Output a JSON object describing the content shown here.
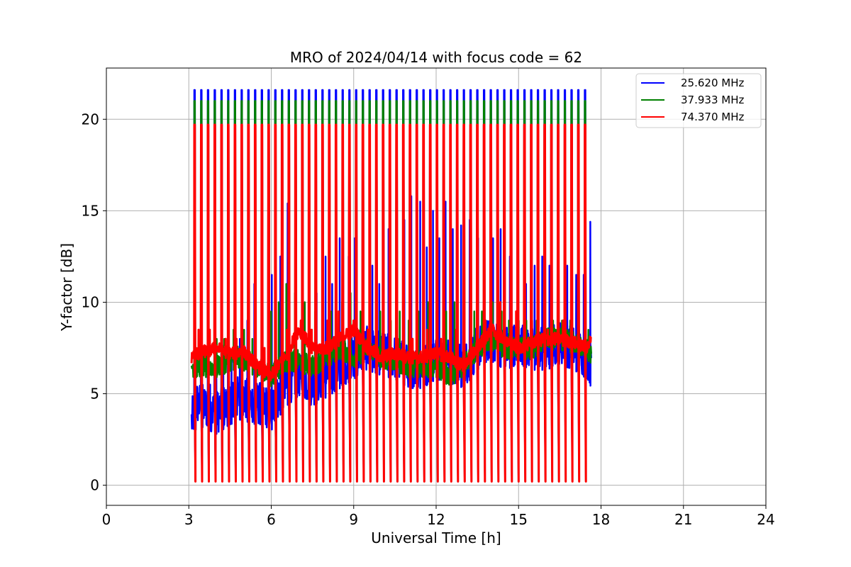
{
  "chart_data": {
    "type": "line",
    "title": "MRO of 2024/04/14 with focus code = 62",
    "xlabel": "Universal Time [h]",
    "ylabel": "Y-factor [dB]",
    "xlim": [
      0,
      24
    ],
    "ylim": [
      -1.1,
      22.8
    ],
    "xticks": [
      0,
      3,
      6,
      9,
      12,
      15,
      18,
      21,
      24
    ],
    "xtick_labels": [
      "0",
      "3",
      "6",
      "9",
      "12",
      "15",
      "18",
      "21",
      "24"
    ],
    "yticks": [
      0,
      5,
      10,
      15,
      20
    ],
    "ytick_labels": [
      "0",
      "5",
      "10",
      "15",
      "20"
    ],
    "grid": true,
    "legend_position": "top-right",
    "data_range_hours": [
      3.1,
      17.65
    ],
    "calibration": {
      "first_pulse_hour": 3.2,
      "pulse_interval_hours": 0.245,
      "pulse_count": 60,
      "pulse_peak_db": {
        "25.620 MHz": 21.6,
        "37.933 MHz": 21.0,
        "74.370 MHz": 19.7
      },
      "pulse_floor_db": 0.2
    },
    "series": [
      {
        "name": "25.620 MHz",
        "color": "#0000ff",
        "baseline_x": [
          3.1,
          3.3,
          4.0,
          4.8,
          5.5,
          6.0,
          6.5,
          7.0,
          7.5,
          8.0,
          8.5,
          9.0,
          9.5,
          10.0,
          10.5,
          11.0,
          11.5,
          12.0,
          12.5,
          13.0,
          13.5,
          14.0,
          14.5,
          15.0,
          15.5,
          16.0,
          16.5,
          17.0,
          17.5,
          17.65
        ],
        "baseline_y": [
          3.5,
          4.5,
          4.0,
          4.8,
          4.5,
          4.2,
          5.5,
          6.0,
          5.5,
          6.0,
          6.5,
          7.0,
          7.5,
          7.2,
          7.0,
          6.5,
          6.5,
          7.0,
          6.8,
          6.5,
          7.5,
          8.0,
          7.5,
          7.8,
          7.5,
          7.5,
          7.8,
          7.5,
          7.0,
          6.5
        ],
        "spike_peaks_db": [
          4.5,
          5.5,
          5.5,
          6.0,
          6.5,
          7.0,
          8.0,
          9.0,
          11.0,
          13.0,
          11.5,
          12.5,
          15.4,
          11.5,
          12.0,
          11.5,
          10.5,
          12.5,
          11.0,
          13.5,
          12.5,
          13.5,
          12.5,
          12.0,
          11.0,
          14.0,
          14.5,
          14.5,
          15.8,
          15.5,
          13.0,
          15.0,
          13.5,
          15.5,
          14.0,
          14.2,
          14.5,
          13.5,
          12.0,
          13.5,
          14.0,
          12.5,
          12.5,
          11.0,
          12.0,
          12.5,
          12.0,
          12.5,
          12.0,
          11.5,
          11.5,
          14.4
        ]
      },
      {
        "name": "37.933 MHz",
        "color": "#008000",
        "baseline_x": [
          3.1,
          3.3,
          4.0,
          4.8,
          5.5,
          6.0,
          6.5,
          7.0,
          7.5,
          8.0,
          8.5,
          9.0,
          9.5,
          10.0,
          10.5,
          11.0,
          11.5,
          12.0,
          12.5,
          13.0,
          13.5,
          14.0,
          14.5,
          15.0,
          15.5,
          16.0,
          16.5,
          17.0,
          17.5,
          17.65
        ],
        "baseline_y": [
          6.5,
          6.5,
          6.5,
          7.0,
          6.5,
          6.0,
          6.8,
          6.8,
          6.5,
          7.0,
          7.5,
          7.0,
          7.5,
          7.0,
          6.8,
          6.5,
          6.5,
          6.5,
          6.0,
          6.5,
          7.5,
          8.0,
          7.5,
          7.5,
          7.5,
          8.0,
          8.0,
          7.8,
          7.5,
          7.0
        ],
        "spike_peaks_db": [
          7.5,
          7.5,
          8.0,
          8.0,
          8.5,
          8.5,
          8.0,
          9.0,
          9.5,
          10.0,
          11.0,
          10.5,
          10.0,
          9.5,
          9.5,
          9.5,
          10.0,
          10.5,
          9.5,
          9.0,
          9.5,
          9.0,
          9.5,
          9.0,
          9.5,
          10.0,
          9.5,
          9.5,
          10.0,
          9.0,
          9.5,
          9.5,
          10.0,
          9.5,
          9.0,
          9.0,
          9.0,
          9.0,
          9.0,
          9.0,
          9.0,
          9.0,
          8.5,
          8.5
        ]
      },
      {
        "name": "74.370 MHz",
        "color": "#ff0000",
        "baseline_x": [
          3.1,
          3.3,
          4.0,
          4.5,
          5.0,
          5.5,
          6.0,
          6.5,
          7.0,
          7.5,
          8.0,
          8.5,
          9.0,
          9.5,
          10.0,
          10.5,
          11.0,
          11.5,
          12.0,
          12.5,
          13.0,
          13.5,
          14.0,
          14.5,
          15.0,
          15.5,
          16.0,
          16.5,
          17.0,
          17.5,
          17.65
        ],
        "baseline_y": [
          7.0,
          7.2,
          7.5,
          7.2,
          7.3,
          6.5,
          6.0,
          7.0,
          8.5,
          7.5,
          7.5,
          8.0,
          8.5,
          7.5,
          7.0,
          7.2,
          7.0,
          7.0,
          7.2,
          7.0,
          6.5,
          7.5,
          8.5,
          8.0,
          7.5,
          7.8,
          8.0,
          8.0,
          7.8,
          7.5,
          8.0
        ],
        "spike_peaks_db": [
          8.5,
          8.5,
          8.0,
          8.0,
          7.5,
          7.5,
          7.0,
          8.5,
          9.0,
          8.5,
          9.0,
          9.5,
          9.0,
          8.5,
          8.0,
          8.0,
          8.0,
          8.5,
          8.0,
          8.5,
          8.0,
          9.0,
          10.0,
          9.5,
          9.0,
          8.5,
          9.0,
          9.0,
          8.5,
          8.5
        ]
      }
    ]
  }
}
